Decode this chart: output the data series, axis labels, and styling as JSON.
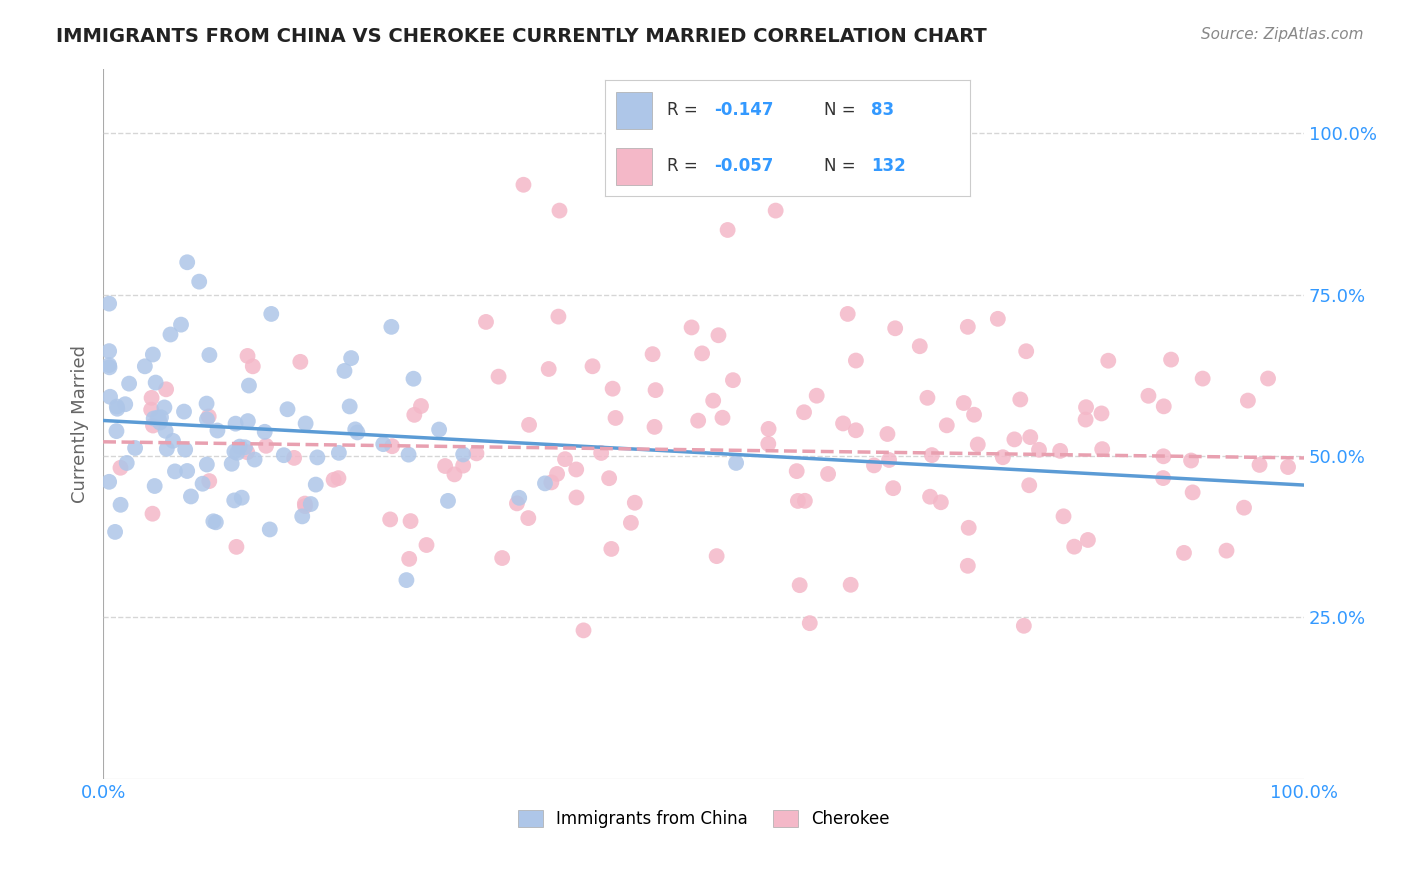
{
  "title": "IMMIGRANTS FROM CHINA VS CHEROKEE CURRENTLY MARRIED CORRELATION CHART",
  "source": "Source: ZipAtlas.com",
  "ylabel": "Currently Married",
  "legend_entries": [
    {
      "label": "Immigrants from China",
      "color": "#aec6e8",
      "R": "-0.147",
      "N": "83"
    },
    {
      "label": "Cherokee",
      "color": "#f4b8c8",
      "R": "-0.057",
      "N": "132"
    }
  ],
  "ytick_labels": [
    "25.0%",
    "50.0%",
    "75.0%",
    "100.0%"
  ],
  "ytick_values": [
    0.25,
    0.5,
    0.75,
    1.0
  ],
  "xlim": [
    0.0,
    1.0
  ],
  "ylim": [
    0.0,
    1.1
  ],
  "grid_color": "#cccccc",
  "background_color": "#ffffff",
  "line_blue_color": "#5b9bd5",
  "line_pink_color": "#e8a0b0",
  "blue_intercept": 0.555,
  "blue_slope": -0.1,
  "pink_intercept": 0.522,
  "pink_slope": -0.025
}
